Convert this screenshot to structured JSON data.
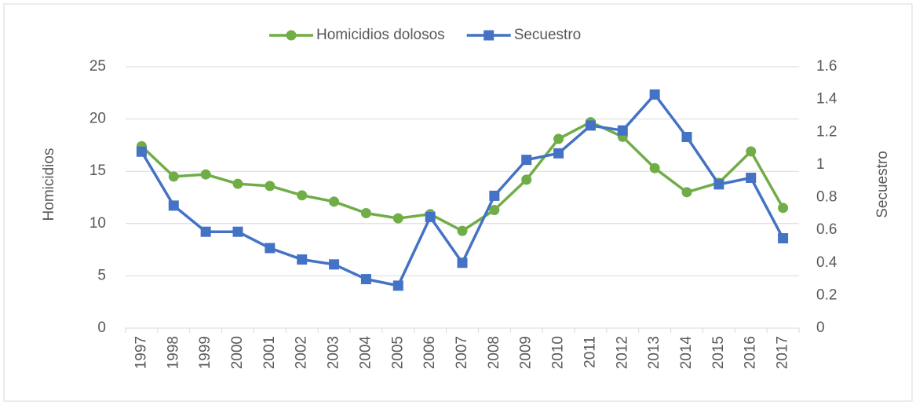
{
  "chart_data": {
    "type": "line",
    "categories": [
      "1997",
      "1998",
      "1999",
      "2000",
      "2001",
      "2002",
      "2003",
      "2004",
      "2005",
      "2006",
      "2007",
      "2008",
      "2009",
      "2010",
      "2011",
      "2012",
      "2013",
      "2014",
      "2015",
      "2016",
      "2017"
    ],
    "series": [
      {
        "name": "Homicidios dolosos",
        "color": "#70ad47",
        "marker": "circle",
        "values": [
          17.4,
          14.5,
          14.7,
          13.8,
          13.6,
          12.7,
          12.1,
          11.0,
          10.5,
          10.9,
          9.3,
          11.3,
          14.2,
          18.1,
          19.7,
          18.3,
          15.3,
          13.0,
          13.9,
          16.9,
          11.5
        ]
      },
      {
        "name": "Secuestro",
        "color": "#4472c4",
        "marker": "square",
        "axis": "y2",
        "values": [
          1.08,
          0.75,
          0.59,
          0.59,
          0.49,
          0.42,
          0.39,
          0.3,
          0.26,
          0.68,
          0.4,
          0.81,
          1.03,
          1.07,
          1.24,
          1.21,
          1.43,
          1.17,
          0.88,
          0.92,
          0.55
        ]
      }
    ],
    "ylabel": "Homicidios",
    "y2label": "Secuestro",
    "ylim": [
      0,
      25
    ],
    "yticks": [
      0,
      5,
      10,
      15,
      20,
      25
    ],
    "y2lim": [
      0,
      1.6
    ],
    "y2ticks": [
      0,
      0.2,
      0.4,
      0.6,
      0.8,
      1,
      1.2,
      1.4,
      1.6
    ],
    "grid": true,
    "legend": "top"
  }
}
